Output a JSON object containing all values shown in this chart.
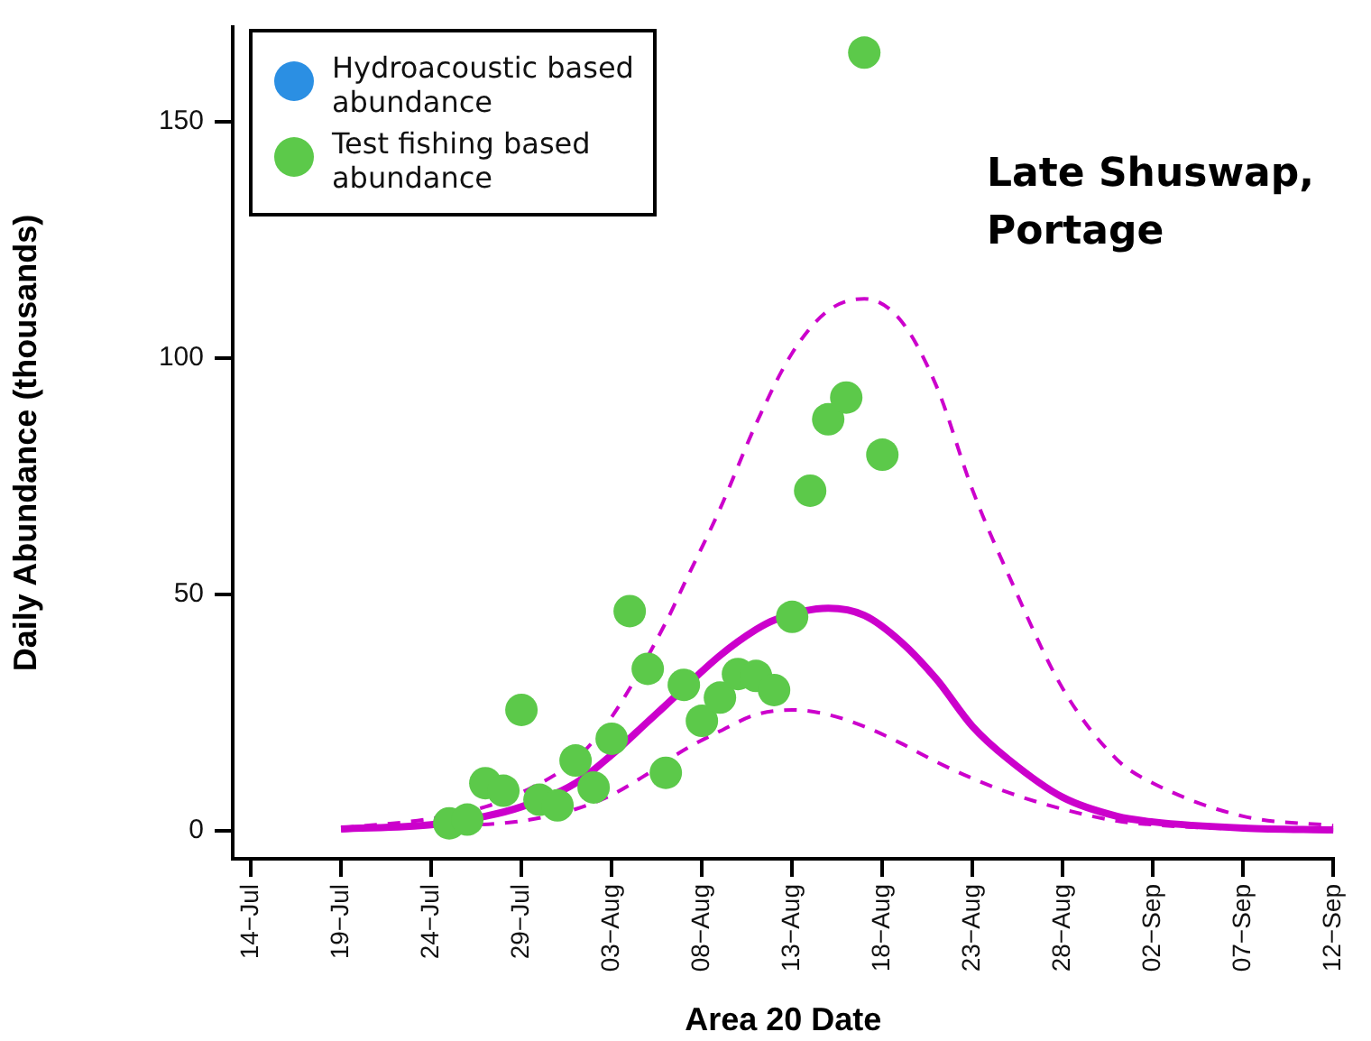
{
  "chart_data": {
    "type": "scatter",
    "xlabel": "Area 20 Date",
    "ylabel": "Daily Abundance (thousands)",
    "annotations": [
      "Late Shuswap, Portage"
    ],
    "xlim": [
      "--07-13",
      "--09-12"
    ],
    "xticks": [
      {
        "value": "--07-14",
        "label": "14−Jul"
      },
      {
        "value": "--07-19",
        "label": "19−Jul"
      },
      {
        "value": "--07-24",
        "label": "24−Jul"
      },
      {
        "value": "--07-29",
        "label": "29−Jul"
      },
      {
        "value": "--08-03",
        "label": "03−Aug"
      },
      {
        "value": "--08-08",
        "label": "08−Aug"
      },
      {
        "value": "--08-13",
        "label": "13−Aug"
      },
      {
        "value": "--08-18",
        "label": "18−Aug"
      },
      {
        "value": "--08-23",
        "label": "23−Aug"
      },
      {
        "value": "--08-28",
        "label": "28−Aug"
      },
      {
        "value": "--09-02",
        "label": "02−Sep"
      },
      {
        "value": "--09-07",
        "label": "07−Sep"
      },
      {
        "value": "--09-12",
        "label": "12−Sep"
      }
    ],
    "ylim": [
      -6,
      170
    ],
    "yticks": [
      0,
      50,
      100,
      150
    ],
    "grid": false,
    "legend": "top left",
    "series": [
      {
        "name": "Hydroacoustic based abundance",
        "type": "scatter",
        "marker": "circle",
        "color": "#2b8fe3"
      },
      {
        "name": "Test fishing based abundance",
        "type": "scatter",
        "marker": "circle",
        "color": "#5cc94a",
        "x": [
          "--07-25",
          "--07-26",
          "--07-27",
          "--07-28",
          "--07-29",
          "--07-30",
          "--07-31",
          "--08-01",
          "--08-02",
          "--08-03",
          "--08-04",
          "--08-05",
          "--08-06",
          "--08-07",
          "--08-08",
          "--08-09",
          "--08-10",
          "--08-11",
          "--08-12",
          "--08-13",
          "--08-14",
          "--08-15",
          "--08-16",
          "--08-17",
          "--08-18"
        ],
        "values": [
          1.5,
          2.3,
          10,
          8.4,
          25.5,
          6.5,
          5.3,
          14.8,
          9.1,
          19.4,
          46.4,
          34.2,
          12.2,
          30.8,
          23.2,
          28.1,
          33.1,
          32.7,
          29.7,
          45.2,
          71.9,
          87,
          91.6,
          164.6,
          79.5
        ]
      },
      {
        "type": "line",
        "line_style": "solid",
        "marker": "none",
        "color": "#cc00cc",
        "x": [
          "--07-19",
          "--07-24",
          "--07-27",
          "--07-29",
          "--08-01",
          "--08-03",
          "--08-05",
          "--08-06",
          "--08-09",
          "--08-11",
          "--08-12",
          "--08-15",
          "--08-17",
          "--08-19",
          "--08-21",
          "--08-23",
          "--08-25",
          "--08-28",
          "--08-31",
          "--09-02",
          "--09-07",
          "--09-12"
        ],
        "values": [
          0.3,
          1.2,
          3,
          5,
          10,
          16,
          23,
          26.5,
          37,
          42.5,
          44.5,
          47,
          45.5,
          40,
          32,
          22,
          15,
          7,
          3,
          1.8,
          0.5,
          0.1
        ]
      },
      {
        "type": "line",
        "line_style": "dashed",
        "marker": "none",
        "color": "#cc00cc",
        "x": [
          "--07-19",
          "--07-24",
          "--07-27",
          "--07-29",
          "--08-01",
          "--08-03",
          "--08-06",
          "--08-07",
          "--08-09",
          "--08-11",
          "--08-13",
          "--08-15",
          "--08-17",
          "--08-19",
          "--08-21",
          "--08-23",
          "--08-25",
          "--08-28",
          "--08-31",
          "--09-02",
          "--09-07",
          "--09-12"
        ],
        "values": [
          0.5,
          2.5,
          5,
          8,
          15,
          24,
          44,
          52,
          68,
          86,
          101,
          110,
          112.5,
          108,
          94,
          72,
          54,
          30,
          15,
          10,
          3,
          1
        ]
      },
      {
        "type": "line",
        "line_style": "dashed",
        "marker": "none",
        "color": "#cc00cc",
        "x": [
          "--07-19",
          "--07-24",
          "--07-29",
          "--08-01",
          "--08-03",
          "--08-05",
          "--08-07",
          "--08-09",
          "--08-11",
          "--08-13",
          "--08-15",
          "--08-17",
          "--08-19",
          "--08-21",
          "--08-23",
          "--08-25",
          "--08-28",
          "--08-31",
          "--09-02",
          "--09-07",
          "--09-12"
        ],
        "values": [
          0.2,
          0.8,
          2,
          4.5,
          7.5,
          12,
          17,
          21,
          24.5,
          25.5,
          24.5,
          22,
          18.5,
          14.5,
          11,
          8,
          4.5,
          2,
          1.2,
          0.3,
          0.1
        ]
      }
    ]
  }
}
